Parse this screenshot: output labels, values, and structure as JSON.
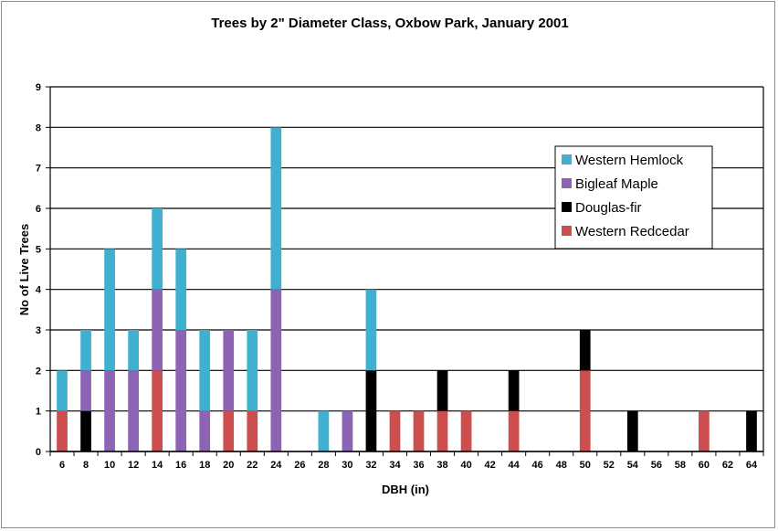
{
  "chart_data": {
    "type": "bar",
    "stacked": true,
    "title": "Trees by 2\" Diameter Class, Oxbow Park, January 2001",
    "xlabel": "DBH (in)",
    "ylabel": "No of Live Trees",
    "ylim": [
      0,
      9
    ],
    "yticks": [
      0,
      1,
      2,
      3,
      4,
      5,
      6,
      7,
      8,
      9
    ],
    "grid": true,
    "legend_position": "right",
    "categories": [
      "6",
      "8",
      "10",
      "12",
      "14",
      "16",
      "18",
      "20",
      "22",
      "24",
      "26",
      "28",
      "30",
      "32",
      "34",
      "36",
      "38",
      "40",
      "42",
      "44",
      "46",
      "48",
      "50",
      "52",
      "54",
      "56",
      "58",
      "60",
      "62",
      "64"
    ],
    "series": [
      {
        "name": "Western Redcedar",
        "color": "#cc4e4e",
        "values": [
          1,
          0,
          0,
          0,
          2,
          0,
          0,
          1,
          1,
          0,
          0,
          0,
          0,
          0,
          1,
          1,
          1,
          1,
          0,
          1,
          0,
          0,
          2,
          0,
          0,
          0,
          0,
          1,
          0,
          0
        ]
      },
      {
        "name": "Douglas-fir",
        "color": "#000000",
        "values": [
          0,
          1,
          0,
          0,
          0,
          0,
          0,
          0,
          0,
          0,
          0,
          0,
          0,
          2,
          0,
          0,
          1,
          0,
          0,
          1,
          0,
          0,
          1,
          0,
          1,
          0,
          0,
          0,
          0,
          1
        ]
      },
      {
        "name": "Bigleaf Maple",
        "color": "#8d63b3",
        "values": [
          0,
          1,
          2,
          2,
          2,
          3,
          1,
          2,
          0,
          4,
          0,
          0,
          1,
          0,
          0,
          0,
          0,
          0,
          0,
          0,
          0,
          0,
          0,
          0,
          0,
          0,
          0,
          0,
          0,
          0
        ]
      },
      {
        "name": "Western Hemlock",
        "color": "#3fb0cf",
        "values": [
          1,
          1,
          3,
          1,
          2,
          2,
          2,
          0,
          2,
          4,
          0,
          1,
          0,
          2,
          0,
          0,
          0,
          0,
          0,
          0,
          0,
          0,
          0,
          0,
          0,
          0,
          0,
          0,
          0,
          0
        ]
      }
    ],
    "legend_order": [
      "Western Hemlock",
      "Bigleaf Maple",
      "Douglas-fir",
      "Western Redcedar"
    ]
  }
}
